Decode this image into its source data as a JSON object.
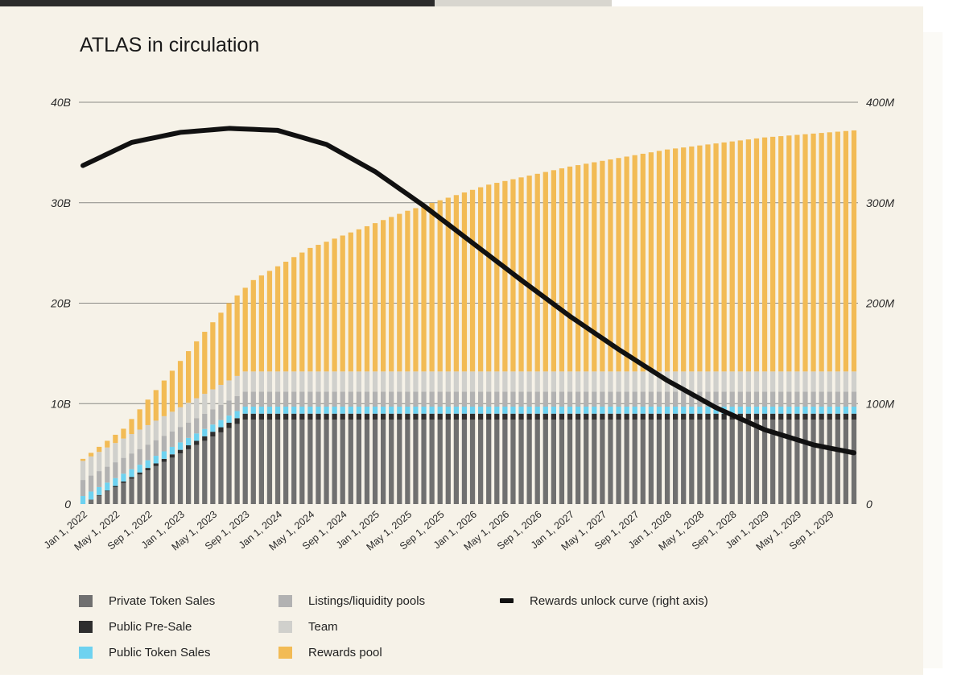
{
  "colors": {
    "background": "#f6f2e8",
    "private_token_sales": "#707070",
    "public_pre_sale": "#2e2e2e",
    "public_token_sales": "#6ed2f0",
    "listings_liquidity_pools": "#b2b2b2",
    "team": "#d0d0cc",
    "rewards_pool": "#f2bb55",
    "rewards_curve": "#111111",
    "gridline": "#8a8a86",
    "tab_active": "#2b2b2b",
    "tab_inactive": "#d8d6cf"
  },
  "chart_data": {
    "type": "bar",
    "stacked": true,
    "title": "ATLAS in circulation",
    "x_start": "Jan 1, 2022",
    "n_bars": 96,
    "x_tick_labels": [
      "Jan 1, 2022",
      "May 1, 2022",
      "Sep 1, 2022",
      "Jan 1, 2023",
      "May 1, 2023",
      "Sep 1, 2023",
      "Jan 1, 2024",
      "May 1, 2024",
      "Sep 1, 2024",
      "Jan 1, 2025",
      "May 1, 2025",
      "Sep 1, 2025",
      "Jan 1, 2026",
      "May 1, 2026",
      "Sep 1, 2026",
      "Jan 1, 2027",
      "May 1, 2027",
      "Sep 1, 2027",
      "Jan 1, 2028",
      "May 1, 2028",
      "Sep 1, 2028",
      "Jan 1, 2029",
      "May 1, 2029",
      "Sep 1, 2029"
    ],
    "left_axis": {
      "ylim": [
        0,
        40
      ],
      "unit": "B",
      "ticks": [
        {
          "value": 0,
          "label": "0"
        },
        {
          "value": 10,
          "label": "10B"
        },
        {
          "value": 20,
          "label": "20B"
        },
        {
          "value": 30,
          "label": "30B"
        },
        {
          "value": 40,
          "label": "40B"
        }
      ]
    },
    "right_axis": {
      "ylim": [
        0,
        400
      ],
      "unit": "M",
      "ticks": [
        {
          "value": 0,
          "label": "0"
        },
        {
          "value": 100,
          "label": "100M"
        },
        {
          "value": 200,
          "label": "200M"
        },
        {
          "value": 300,
          "label": "300M"
        },
        {
          "value": 400,
          "label": "400M"
        }
      ]
    },
    "grid": true,
    "legend_position": "bottom",
    "series": [
      {
        "name": "Private Token Sales",
        "key": "private_token_sales",
        "axis": "left",
        "ramp": {
          "start": 0.0,
          "end": 8.4,
          "end_index": 20
        }
      },
      {
        "name": "Public Pre-Sale",
        "key": "public_pre_sale",
        "axis": "left",
        "ramp": {
          "start": 0.0,
          "end": 0.6,
          "end_index": 20
        }
      },
      {
        "name": "Public Token Sales",
        "key": "public_token_sales",
        "axis": "left",
        "ramp": {
          "start": 0.8,
          "end": 0.7,
          "end_index": 20
        }
      },
      {
        "name": "Listings/liquidity pools",
        "key": "listings_liquidity_pools",
        "axis": "left",
        "ramp": {
          "start": 1.6,
          "end": 1.5,
          "end_index": 20
        }
      },
      {
        "name": "Team",
        "key": "team",
        "axis": "left",
        "ramp": {
          "start": 1.9,
          "end": 2.0,
          "end_index": 20
        }
      },
      {
        "name": "Rewards pool",
        "key": "rewards_pool",
        "axis": "left",
        "totals": [
          {
            "i": 0,
            "total": 4.5
          },
          {
            "i": 5,
            "total": 7.5
          },
          {
            "i": 8,
            "total": 10.4
          },
          {
            "i": 10,
            "total": 12.3
          },
          {
            "i": 14,
            "total": 16.2
          },
          {
            "i": 18,
            "total": 20.0
          },
          {
            "i": 21,
            "total": 22.3
          },
          {
            "i": 28,
            "total": 25.5
          },
          {
            "i": 40,
            "total": 29.2
          },
          {
            "i": 50,
            "total": 31.8
          },
          {
            "i": 60,
            "total": 33.6
          },
          {
            "i": 72,
            "total": 35.3
          },
          {
            "i": 84,
            "total": 36.5
          },
          {
            "i": 95,
            "total": 37.2
          }
        ]
      }
    ],
    "curve": {
      "name": "Rewards unlock curve (right axis)",
      "axis": "right",
      "points": [
        {
          "i": 0,
          "v": 337
        },
        {
          "i": 6,
          "v": 360
        },
        {
          "i": 12,
          "v": 370
        },
        {
          "i": 18,
          "v": 374
        },
        {
          "i": 24,
          "v": 372
        },
        {
          "i": 30,
          "v": 358
        },
        {
          "i": 36,
          "v": 331
        },
        {
          "i": 42,
          "v": 297
        },
        {
          "i": 48,
          "v": 260
        },
        {
          "i": 54,
          "v": 223
        },
        {
          "i": 60,
          "v": 187
        },
        {
          "i": 66,
          "v": 154
        },
        {
          "i": 72,
          "v": 123
        },
        {
          "i": 78,
          "v": 96
        },
        {
          "i": 84,
          "v": 74
        },
        {
          "i": 90,
          "v": 59
        },
        {
          "i": 95,
          "v": 51
        }
      ]
    }
  },
  "legend": [
    {
      "label": "Private Token Sales",
      "color_key": "private_token_sales",
      "kind": "swatch"
    },
    {
      "label": "Public Pre-Sale",
      "color_key": "public_pre_sale",
      "kind": "swatch"
    },
    {
      "label": "Public Token Sales",
      "color_key": "public_token_sales",
      "kind": "swatch"
    },
    {
      "label": "Listings/liquidity pools",
      "color_key": "listings_liquidity_pools",
      "kind": "swatch"
    },
    {
      "label": "Team",
      "color_key": "team",
      "kind": "swatch"
    },
    {
      "label": "Rewards pool",
      "color_key": "rewards_pool",
      "kind": "swatch"
    },
    {
      "label": "Rewards unlock curve (right axis)",
      "color_key": "rewards_curve",
      "kind": "line"
    }
  ]
}
